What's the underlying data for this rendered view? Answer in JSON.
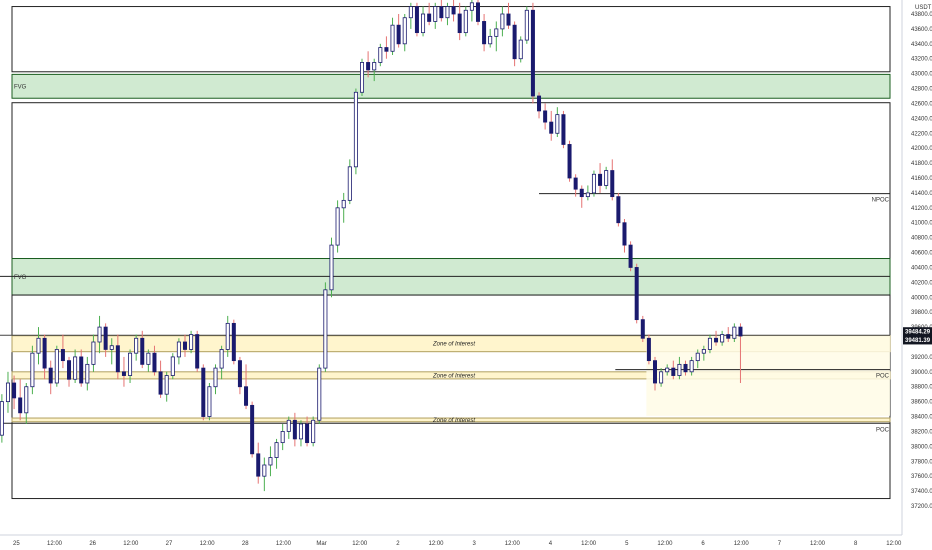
{
  "chart_data": {
    "type": "candlestick",
    "currency": "USDT",
    "ylim": [
      37200,
      43800
    ],
    "y_ticks": [
      "43800.00",
      "43600.00",
      "43400.00",
      "43200.00",
      "43000.00",
      "42800.00",
      "42600.00",
      "42400.00",
      "42200.00",
      "42000.00",
      "41800.00",
      "41600.00",
      "41400.00",
      "41200.00",
      "41000.00",
      "40800.00",
      "40600.00",
      "40400.00",
      "40200.00",
      "40000.00",
      "39800.00",
      "39600.00",
      "39400.00",
      "39200.00",
      "39000.00",
      "38800.00",
      "38600.00",
      "38400.00",
      "38200.00",
      "38000.00",
      "37800.00",
      "37600.00",
      "37400.00",
      "37200.00"
    ],
    "x_ticks": [
      "25",
      "12:00",
      "26",
      "12:00",
      "27",
      "12:00",
      "28",
      "12:00",
      "Mar",
      "12:00",
      "2",
      "12:00",
      "3",
      "12:00",
      "4",
      "12:00",
      "5",
      "12:00",
      "6",
      "12:00",
      "7",
      "12:00",
      "8",
      "12:00"
    ],
    "price_labels": [
      {
        "value": 39484.29,
        "text": "39484.29",
        "color": "#131722"
      },
      {
        "value": 39481.39,
        "text": "39481.39",
        "color": "#131722"
      }
    ],
    "rectangles": [
      {
        "label": "",
        "x0": -0.4,
        "x1": 11.35,
        "y_top": 43900,
        "y_bot": 43025,
        "fill": "none",
        "stroke": "#222222"
      },
      {
        "label": "FVG",
        "x0": -0.4,
        "x1": 11.35,
        "y_top": 42990,
        "y_bot": 42670,
        "fill": "#c8e6c9",
        "stroke": "#1b5e20"
      },
      {
        "label": "",
        "x0": -0.4,
        "x1": 11.35,
        "y_top": 42610,
        "y_bot": 40520,
        "fill": "none",
        "stroke": "#222222"
      },
      {
        "label": "FVG",
        "x0": -0.4,
        "x1": 11.35,
        "y_top": 40520,
        "y_bot": 40030,
        "fill": "#c8e6c9",
        "stroke": "#1b5e20"
      },
      {
        "label": "",
        "x0": -0.4,
        "x1": 11.35,
        "y_top": 40030,
        "y_bot": 37300,
        "fill": "none",
        "stroke": "#222222"
      },
      {
        "label": "Zone of Interest",
        "x0": -0.4,
        "x1": 11.35,
        "y_top": 39484,
        "y_bot": 39270,
        "fill": "#fff3c4",
        "stroke": "#b0a060"
      },
      {
        "label": "Zone of Interest",
        "x0": -0.4,
        "x1": 11.35,
        "y_top": 39000,
        "y_bot": 38905,
        "fill": "#fff3c4",
        "stroke": "#b0a060"
      },
      {
        "label": "Zone of Interest",
        "x0": -0.4,
        "x1": 11.35,
        "y_top": 38380,
        "y_bot": 38330,
        "fill": "#fff3c4",
        "stroke": "#b0a060"
      },
      {
        "label": "",
        "x0": 8.0,
        "x1": 11.35,
        "y_top": 39484,
        "y_bot": 38410,
        "fill": "#fffbe6",
        "stroke": "none"
      }
    ],
    "lines": [
      {
        "label": "",
        "x0": -0.4,
        "x1": 11.35,
        "y": 40280,
        "color": "#222222"
      },
      {
        "label": "NPOC",
        "x0": 6.75,
        "x1": 11.35,
        "y": 41390,
        "color": "#222222"
      },
      {
        "label": "POC",
        "x0": 7.75,
        "x1": 11.35,
        "y": 39030,
        "color": "#222222"
      },
      {
        "label": "POC",
        "x0": -0.4,
        "x1": 11.35,
        "y": 38310,
        "color": "#222222"
      },
      {
        "label": "",
        "x0": -0.4,
        "x1": 11.35,
        "y": 39490,
        "color": "#444444"
      }
    ],
    "candles": [
      [
        -0.45,
        38350,
        38420,
        37300,
        37360
      ],
      [
        -0.37,
        37650,
        38200,
        37600,
        38150
      ],
      [
        -0.29,
        38150,
        38700,
        38050,
        38600
      ],
      [
        -0.21,
        38600,
        39000,
        38450,
        38850
      ],
      [
        -0.13,
        38850,
        38950,
        38500,
        38650
      ],
      [
        -0.05,
        38650,
        38900,
        38350,
        38450
      ],
      [
        0.03,
        38450,
        38850,
        38300,
        38800
      ],
      [
        0.11,
        38800,
        39350,
        38700,
        39250
      ],
      [
        0.19,
        39250,
        39600,
        39100,
        39450
      ],
      [
        0.27,
        39450,
        39500,
        38900,
        39050
      ],
      [
        0.35,
        39050,
        39150,
        38700,
        38850
      ],
      [
        0.43,
        38850,
        39350,
        38800,
        39300
      ],
      [
        0.51,
        39300,
        39500,
        39050,
        39150
      ],
      [
        0.59,
        39150,
        39200,
        38800,
        38900
      ],
      [
        0.67,
        38900,
        39300,
        38850,
        39200
      ],
      [
        0.75,
        39200,
        39300,
        38800,
        38850
      ],
      [
        0.83,
        38850,
        39200,
        38750,
        39100
      ],
      [
        0.91,
        39100,
        39500,
        39000,
        39400
      ],
      [
        0.99,
        39400,
        39750,
        39250,
        39600
      ],
      [
        1.07,
        39600,
        39650,
        39200,
        39300
      ],
      [
        1.15,
        39300,
        39450,
        39100,
        39350
      ],
      [
        1.23,
        39350,
        39500,
        38900,
        39000
      ],
      [
        1.31,
        39000,
        39200,
        38800,
        38950
      ],
      [
        1.39,
        38950,
        39300,
        38850,
        39250
      ],
      [
        1.47,
        39250,
        39500,
        39150,
        39450
      ],
      [
        1.55,
        39450,
        39550,
        39050,
        39100
      ],
      [
        1.63,
        39100,
        39300,
        39000,
        39250
      ],
      [
        1.71,
        39250,
        39350,
        38950,
        39000
      ],
      [
        1.79,
        39000,
        39150,
        38650,
        38700
      ],
      [
        1.87,
        38700,
        39000,
        38600,
        38950
      ],
      [
        1.95,
        38950,
        39250,
        38900,
        39200
      ],
      [
        2.03,
        39200,
        39450,
        39100,
        39400
      ],
      [
        2.11,
        39400,
        39500,
        39200,
        39300
      ],
      [
        2.19,
        39300,
        39550,
        39250,
        39500
      ],
      [
        2.27,
        39500,
        39550,
        39000,
        39050
      ],
      [
        2.35,
        39050,
        39100,
        38350,
        38400
      ],
      [
        2.43,
        38400,
        38850,
        38350,
        38800
      ],
      [
        2.51,
        38800,
        39100,
        38700,
        39050
      ],
      [
        2.59,
        39050,
        39350,
        38900,
        39300
      ],
      [
        2.67,
        39300,
        39750,
        39200,
        39650
      ],
      [
        2.75,
        39650,
        39700,
        39100,
        39150
      ],
      [
        2.83,
        39150,
        39200,
        38700,
        38800
      ],
      [
        2.91,
        38800,
        39100,
        38500,
        38550
      ],
      [
        2.99,
        38550,
        38600,
        37850,
        37900
      ],
      [
        3.07,
        37900,
        38050,
        37500,
        37600
      ],
      [
        3.15,
        37600,
        37850,
        37400,
        37750
      ],
      [
        3.23,
        37750,
        38000,
        37600,
        37850
      ],
      [
        3.31,
        37850,
        38100,
        37700,
        38050
      ],
      [
        3.39,
        38050,
        38300,
        37950,
        38200
      ],
      [
        3.47,
        38200,
        38400,
        38100,
        38350
      ],
      [
        3.55,
        38350,
        38450,
        38000,
        38100
      ],
      [
        3.63,
        38100,
        38350,
        38000,
        38300
      ],
      [
        3.71,
        38300,
        38400,
        38000,
        38050
      ],
      [
        3.79,
        38050,
        38400,
        38000,
        38350
      ],
      [
        3.87,
        38350,
        39100,
        38300,
        39050
      ],
      [
        3.95,
        39050,
        40200,
        39000,
        40100
      ],
      [
        4.03,
        40100,
        40800,
        40000,
        40700
      ],
      [
        4.11,
        40700,
        41300,
        40600,
        41200
      ],
      [
        4.19,
        41200,
        41400,
        41000,
        41300
      ],
      [
        4.27,
        41300,
        41850,
        41250,
        41750
      ],
      [
        4.35,
        41750,
        42800,
        41650,
        42750
      ],
      [
        4.43,
        42750,
        43200,
        42700,
        43150
      ],
      [
        4.51,
        43150,
        43300,
        42950,
        43050
      ],
      [
        4.59,
        43050,
        43200,
        42900,
        43150
      ],
      [
        4.67,
        43150,
        43400,
        43100,
        43350
      ],
      [
        4.75,
        43350,
        43500,
        43200,
        43300
      ],
      [
        4.83,
        43300,
        43750,
        43250,
        43650
      ],
      [
        4.91,
        43650,
        43800,
        43350,
        43400
      ],
      [
        4.99,
        43400,
        43800,
        43300,
        43750
      ],
      [
        5.07,
        43750,
        43950,
        43600,
        43900
      ],
      [
        5.15,
        43900,
        43950,
        43500,
        43550
      ],
      [
        5.23,
        43550,
        43900,
        43500,
        43800
      ],
      [
        5.31,
        43800,
        43950,
        43650,
        43700
      ],
      [
        5.39,
        43700,
        43950,
        43600,
        43900
      ],
      [
        5.47,
        43900,
        44000,
        43700,
        43750
      ],
      [
        5.55,
        43750,
        43950,
        43650,
        43900
      ],
      [
        5.63,
        43900,
        44000,
        43700,
        43800
      ],
      [
        5.71,
        43800,
        43950,
        43450,
        43550
      ],
      [
        5.79,
        43550,
        43900,
        43500,
        43850
      ],
      [
        5.87,
        43850,
        44000,
        43700,
        43950
      ],
      [
        5.95,
        43950,
        44000,
        43650,
        43700
      ],
      [
        6.03,
        43700,
        43800,
        43300,
        43400
      ],
      [
        6.11,
        43400,
        43600,
        43350,
        43500
      ],
      [
        6.19,
        43500,
        43700,
        43300,
        43600
      ],
      [
        6.27,
        43600,
        43900,
        43500,
        43800
      ],
      [
        6.35,
        43800,
        43950,
        43600,
        43650
      ],
      [
        6.43,
        43650,
        43700,
        43100,
        43200
      ],
      [
        6.51,
        43200,
        43500,
        43150,
        43450
      ],
      [
        6.59,
        43450,
        43900,
        43400,
        43850
      ],
      [
        6.67,
        43850,
        43950,
        42600,
        42700
      ],
      [
        6.75,
        42700,
        42750,
        42400,
        42500
      ],
      [
        6.83,
        42500,
        42600,
        42250,
        42350
      ],
      [
        6.91,
        42350,
        42500,
        42100,
        42200
      ],
      [
        6.99,
        42200,
        42550,
        42150,
        42450
      ],
      [
        7.07,
        42450,
        42500,
        42000,
        42050
      ],
      [
        7.15,
        42050,
        42100,
        41550,
        41600
      ],
      [
        7.23,
        41600,
        41650,
        41350,
        41450
      ],
      [
        7.31,
        41450,
        41500,
        41200,
        41350
      ],
      [
        7.39,
        41350,
        41500,
        41300,
        41400
      ],
      [
        7.47,
        41400,
        41700,
        41350,
        41650
      ],
      [
        7.55,
        41650,
        41800,
        41400,
        41500
      ],
      [
        7.63,
        41500,
        41750,
        41450,
        41700
      ],
      [
        7.71,
        41700,
        41850,
        41300,
        41350
      ],
      [
        7.79,
        41350,
        41400,
        40950,
        41000
      ],
      [
        7.87,
        41000,
        41050,
        40600,
        40700
      ],
      [
        7.95,
        40700,
        40750,
        40350,
        40400
      ],
      [
        8.03,
        40400,
        40450,
        39650,
        39700
      ],
      [
        8.11,
        39700,
        39750,
        39400,
        39450
      ],
      [
        8.19,
        39450,
        39500,
        39100,
        39150
      ],
      [
        8.27,
        39150,
        39200,
        38750,
        38850
      ],
      [
        8.35,
        38850,
        39050,
        38800,
        39000
      ],
      [
        8.43,
        39000,
        39100,
        38950,
        39050
      ],
      [
        8.51,
        39050,
        39150,
        38900,
        38950
      ],
      [
        8.59,
        38950,
        39200,
        38900,
        39100
      ],
      [
        8.67,
        39100,
        39150,
        38950,
        39000
      ],
      [
        8.75,
        39000,
        39200,
        38950,
        39150
      ],
      [
        8.83,
        39150,
        39300,
        39050,
        39250
      ],
      [
        8.91,
        39250,
        39350,
        39150,
        39300
      ],
      [
        8.99,
        39300,
        39500,
        39250,
        39450
      ],
      [
        9.07,
        39450,
        39550,
        39350,
        39400
      ],
      [
        9.15,
        39400,
        39550,
        39350,
        39500
      ],
      [
        9.23,
        39500,
        39600,
        39400,
        39450
      ],
      [
        9.31,
        39450,
        39650,
        39400,
        39600
      ],
      [
        9.39,
        39600,
        39650,
        38850,
        39480
      ]
    ]
  }
}
